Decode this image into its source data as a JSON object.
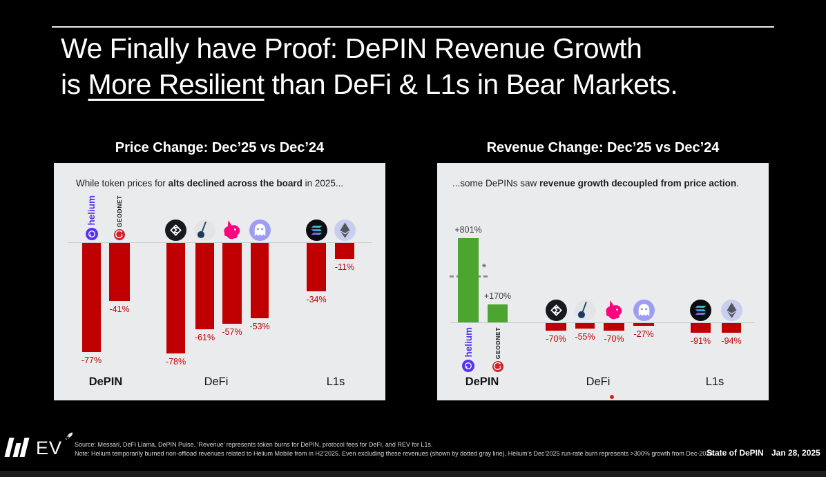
{
  "title": {
    "line1": "We Finally have Proof: DePIN Revenue Growth",
    "line2_prefix": "is ",
    "line2_underline": "More Resilient",
    "line2_suffix": " than DeFi & L1s in Bear Markets."
  },
  "charts": {
    "price": {
      "heading": "Price Change: Dec’25 vs Dec’24",
      "subtitle": {
        "pre": "While token prices for ",
        "bold": "alts declined across the board",
        "post": " in 2025..."
      }
    },
    "revenue": {
      "heading": "Revenue Change: Dec’25 vs Dec’24",
      "subtitle": {
        "pre": "...some DePINs saw ",
        "bold": "revenue growth decoupled from price action",
        "post": "."
      },
      "asterisk": "*"
    }
  },
  "chart_data": [
    {
      "type": "bar",
      "title": "Price Change: Dec’25 vs Dec’24",
      "subtitle": "While token prices for alts declined across the board in 2025...",
      "groups": [
        "DePIN",
        "DeFi",
        "L1s"
      ],
      "categories": [
        "Helium",
        "GEODNET",
        "Ethena",
        "Pendle",
        "Uniswap",
        "Aave",
        "Solana",
        "Ethereum"
      ],
      "icons": [
        "helium",
        "geodnet",
        "ethena",
        "pendulum",
        "uniswap",
        "aave",
        "solana",
        "ethereum"
      ],
      "values": [
        -77,
        -41,
        -78,
        -61,
        -57,
        -53,
        -34,
        -11
      ],
      "labels": [
        "-77%",
        "-41%",
        "-78%",
        "-61%",
        "-57%",
        "-53%",
        "-34%",
        "-11%"
      ],
      "bar_color": "#c00000",
      "unit": "%",
      "ylim": [
        -85,
        0
      ],
      "grid": false,
      "legend": "none"
    },
    {
      "type": "bar",
      "title": "Revenue Change: Dec’25 vs Dec’24",
      "subtitle": "...some DePINs saw revenue growth decoupled from price action.",
      "groups": [
        "DePIN",
        "DeFi",
        "L1s"
      ],
      "categories": [
        "Helium",
        "GEODNET",
        "Ethena",
        "Pendle",
        "Uniswap",
        "Aave",
        "Solana",
        "Ethereum"
      ],
      "icons": [
        "helium",
        "geodnet",
        "ethena",
        "pendulum",
        "uniswap",
        "aave",
        "solana",
        "ethereum"
      ],
      "values": [
        801,
        170,
        -70,
        -55,
        -70,
        -27,
        -91,
        -94
      ],
      "labels": [
        "+801%",
        "+170%",
        "-70%",
        "-55%",
        "-70%",
        "-27%",
        "-91%",
        "-94%"
      ],
      "positive_color": "#4ca52f",
      "negative_color": "#c00000",
      "unit": "%",
      "ylim": [
        -100,
        850
      ],
      "grid": false,
      "legend": "none",
      "annotation": {
        "marker": "*",
        "dashed_line": true
      }
    }
  ],
  "groups": [
    "DePIN",
    "DeFi",
    "L1s"
  ],
  "tokens": {
    "helium_label": "helium",
    "geodnet_label": "GEODNET"
  },
  "footer": {
    "logo_text": "EV",
    "source_line": "Source: Messari, DeFi Llama, DePIN Pulse. ‘Revenue’ represents token burns for DePIN, protocol fees for DeFi, and REV for L1s.",
    "note_line": "Note: Helium temporarily burned non-offload revenues related to Helium Mobile from in H2’2025. Even excluding these revenues (shown by dotted gray line), Helium’s Dec’2025 run-rate burn represents >300% growth from Dec-2024.",
    "deck_name": "State of DePIN",
    "date": "Jan 28, 2025"
  },
  "colors": {
    "background": "#000000",
    "panel": "#e9ebed",
    "negative": "#c00000",
    "positive": "#4ca52f",
    "helium_purple": "#5732f5",
    "geodnet_red": "#d2232a",
    "uniswap_pink": "#ff027d",
    "aave_lavender": "#9f9df3",
    "eth_lavender": "#c9cdee",
    "title_white": "#ffffff"
  }
}
